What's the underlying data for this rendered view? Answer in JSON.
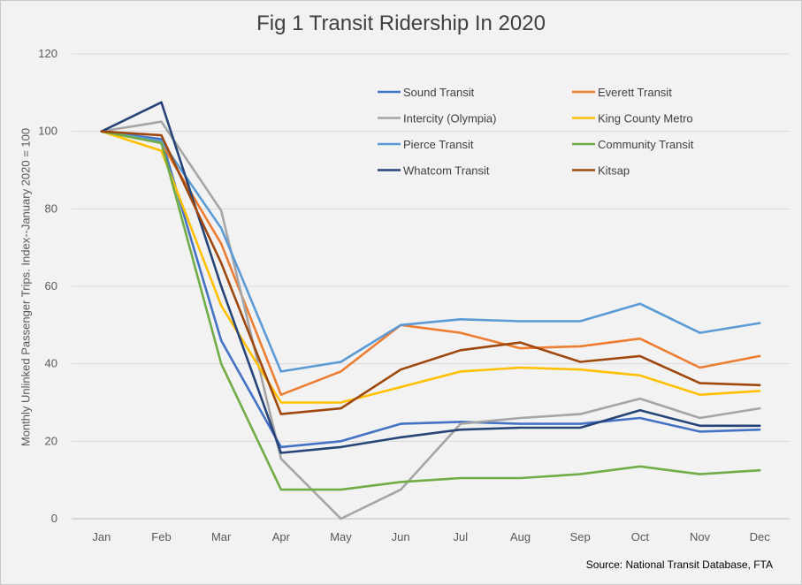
{
  "chart_data": {
    "type": "line",
    "title": "Fig 1 Transit Ridership In 2020",
    "xlabel": "",
    "ylabel": "Monthly Unlinked Passenger Trips. Index--January 2020 = 100",
    "ylim": [
      0,
      120
    ],
    "yticks": [
      0,
      20,
      40,
      60,
      80,
      100,
      120
    ],
    "grid": true,
    "legend_position": "top-right",
    "categories": [
      "Jan",
      "Feb",
      "Mar",
      "Apr",
      "May",
      "Jun",
      "Jul",
      "Aug",
      "Sep",
      "Oct",
      "Nov",
      "Dec"
    ],
    "series": [
      {
        "name": "Sound Transit",
        "color": "#4472c4",
        "values": [
          100,
          98,
          46,
          18.5,
          20,
          24.5,
          25,
          24.5,
          24.5,
          26,
          22.5,
          23
        ]
      },
      {
        "name": "Everett Transit",
        "color": "#ed7d31",
        "values": [
          100,
          97,
          71,
          32,
          38,
          50,
          48,
          44,
          44.5,
          46.5,
          39,
          42
        ]
      },
      {
        "name": "Intercity (Olympia)",
        "color": "#a5a5a5",
        "values": [
          100,
          102.5,
          79.5,
          15.5,
          0,
          7.5,
          24.5,
          26,
          27,
          31,
          26,
          28.5
        ]
      },
      {
        "name": "King County Metro",
        "color": "#ffc000",
        "values": [
          100,
          95,
          55,
          30,
          30,
          34,
          38,
          39,
          38.5,
          37,
          32,
          33
        ]
      },
      {
        "name": "Pierce Transit",
        "color": "#5b9bd5",
        "values": [
          100,
          97.5,
          75,
          38,
          40.5,
          50,
          51.5,
          51,
          51,
          55.5,
          48,
          50.5
        ]
      },
      {
        "name": "Community Transit",
        "color": "#70ad47",
        "values": [
          100,
          97,
          40,
          7.5,
          7.5,
          9.5,
          10.5,
          10.5,
          11.5,
          13.5,
          11.5,
          12.5
        ]
      },
      {
        "name": "Whatcom Transit",
        "color": "#264478",
        "values": [
          100,
          107.5,
          60,
          17,
          18.5,
          21,
          23,
          23.5,
          23.5,
          28,
          24,
          24
        ]
      },
      {
        "name": "Kitsap",
        "color": "#9e480e",
        "values": [
          100,
          99,
          66,
          27,
          28.5,
          38.5,
          43.5,
          45.5,
          40.5,
          42,
          35,
          34.5
        ]
      }
    ]
  },
  "source_note": "Source: National Transit Database, FTA"
}
